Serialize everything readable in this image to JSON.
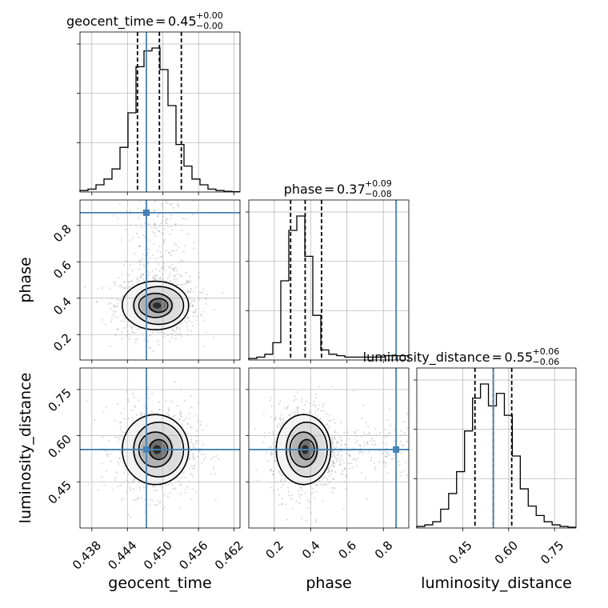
{
  "chart_data": {
    "type": "corner",
    "parameters": [
      {
        "name": "geocent_time",
        "label": "geocent_time",
        "median": "0.45",
        "upper": "+0.00",
        "lower": "−0.00",
        "range": [
          0.436,
          0.463
        ],
        "ticks": [
          "0.438",
          "0.444",
          "0.450",
          "0.456",
          "0.462"
        ],
        "tick_values": [
          0.438,
          0.444,
          0.45,
          0.456,
          0.462
        ],
        "quantiles": [
          0.4457,
          0.4494,
          0.4531
        ],
        "truth": 0.4472,
        "hist_edges_start": 0.436,
        "hist_bin_width": 0.00135,
        "hist": [
          0.01,
          0.02,
          0.05,
          0.09,
          0.16,
          0.31,
          0.55,
          0.87,
          0.98,
          1.0,
          0.85,
          0.6,
          0.33,
          0.18,
          0.09,
          0.05,
          0.02,
          0.01,
          0.005,
          0.002
        ]
      },
      {
        "name": "phase",
        "label": "phase",
        "median": "0.37",
        "upper": "+0.09",
        "lower": "−0.08",
        "range": [
          0.06,
          0.94
        ],
        "ticks": [
          "0.2",
          "0.4",
          "0.6",
          "0.8"
        ],
        "tick_values": [
          0.2,
          0.4,
          0.6,
          0.8
        ],
        "quantiles": [
          0.29,
          0.37,
          0.46
        ],
        "truth": 0.87,
        "hist_edges_start": 0.06,
        "hist_bin_width": 0.044,
        "hist": [
          0.01,
          0.02,
          0.04,
          0.12,
          0.55,
          0.9,
          1.0,
          0.72,
          0.31,
          0.07,
          0.04,
          0.03,
          0.02,
          0.02,
          0.02,
          0.02,
          0.02,
          0.03,
          0.03,
          0.03
        ]
      },
      {
        "name": "luminosity_distance",
        "label": "luminosity_distance",
        "median": "0.55",
        "upper": "+0.06",
        "lower": "−0.06",
        "range": [
          0.3,
          0.82
        ],
        "ticks": [
          "0.45",
          "0.60",
          "0.75"
        ],
        "tick_values": [
          0.45,
          0.6,
          0.75
        ],
        "quantiles": [
          0.49,
          0.55,
          0.61
        ],
        "truth": 0.55,
        "hist_edges_start": 0.3,
        "hist_bin_width": 0.026,
        "hist": [
          0.01,
          0.02,
          0.04,
          0.12,
          0.22,
          0.36,
          0.62,
          0.83,
          0.92,
          0.78,
          0.86,
          0.72,
          0.46,
          0.25,
          0.14,
          0.08,
          0.04,
          0.02,
          0.01,
          0.005
        ]
      }
    ],
    "axis_labels": {
      "x": [
        "geocent_time",
        "phase",
        "luminosity_distance"
      ],
      "y": [
        "phase",
        "luminosity_distance"
      ]
    },
    "pairs": [
      {
        "x": "geocent_time",
        "y": "phase",
        "center": [
          0.449,
          0.36
        ],
        "spread": [
          0.0028,
          0.068
        ],
        "truth": [
          0.4472,
          0.87
        ]
      },
      {
        "x": "geocent_time",
        "y": "luminosity_distance",
        "center": [
          0.449,
          0.555
        ],
        "spread": [
          0.0028,
          0.058
        ],
        "truth": [
          0.4472,
          0.555
        ]
      },
      {
        "x": "phase",
        "y": "luminosity_distance",
        "center": [
          0.37,
          0.555
        ],
        "spread": [
          0.075,
          0.058
        ],
        "truth": [
          0.87,
          0.555
        ]
      }
    ],
    "grid": true,
    "truth_color": "#4682b4",
    "hist_color": "#000000"
  }
}
